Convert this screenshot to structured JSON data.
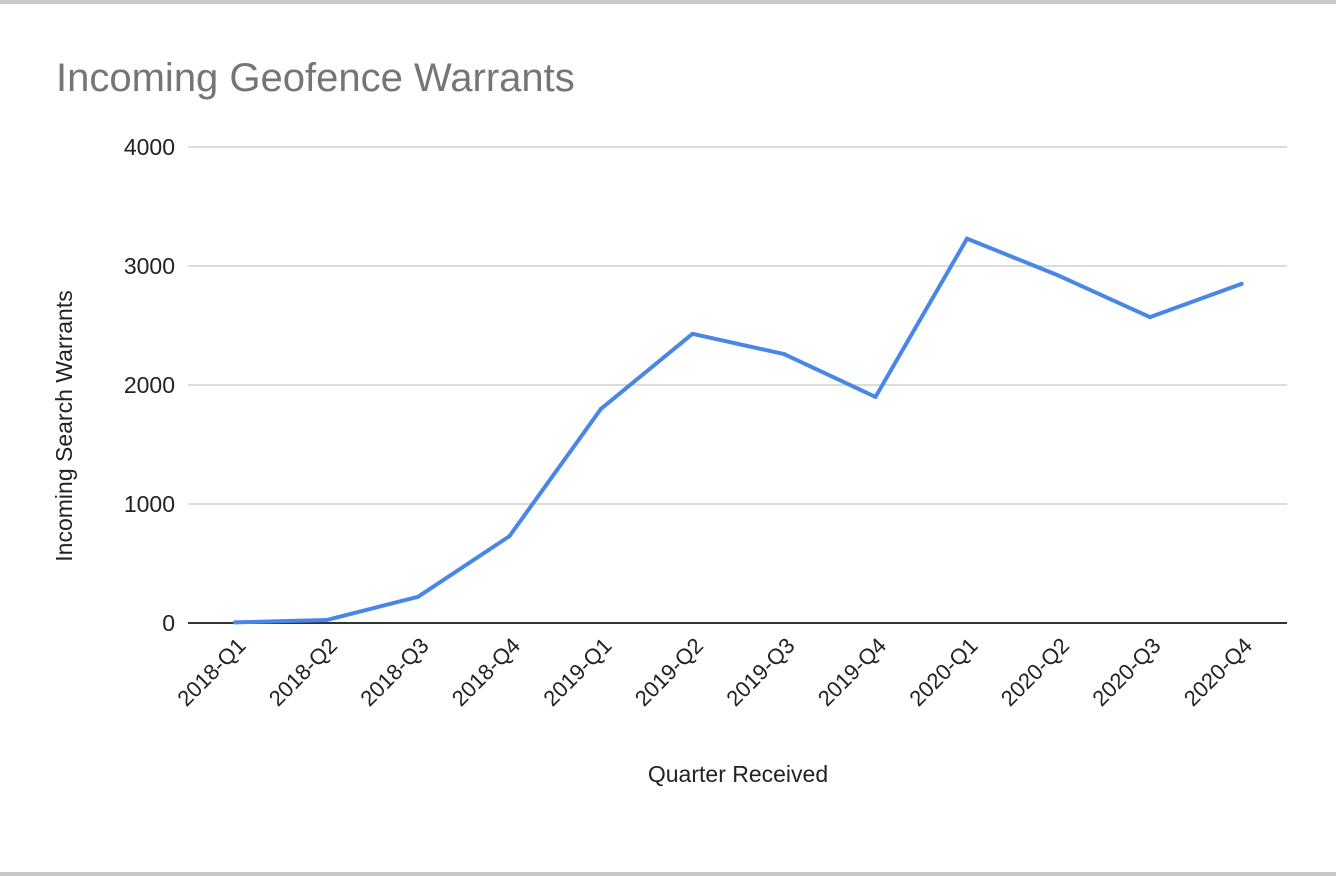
{
  "chart_data": {
    "type": "line",
    "title": "Incoming Geofence Warrants",
    "xlabel": "Quarter Received",
    "ylabel": "Incoming Search Warrants",
    "ylim": [
      0,
      4000
    ],
    "y_ticks": [
      0,
      1000,
      2000,
      3000,
      4000
    ],
    "grid": true,
    "legend": "none",
    "categories": [
      "2018-Q1",
      "2018-Q2",
      "2018-Q3",
      "2018-Q4",
      "2019-Q1",
      "2019-Q2",
      "2019-Q3",
      "2019-Q4",
      "2020-Q1",
      "2020-Q2",
      "2020-Q3",
      "2020-Q4"
    ],
    "series": [
      {
        "color": "#4a86e8",
        "values": [
          5,
          25,
          220,
          730,
          1800,
          2430,
          2260,
          1900,
          3230,
          2920,
          2570,
          2850
        ]
      }
    ]
  }
}
